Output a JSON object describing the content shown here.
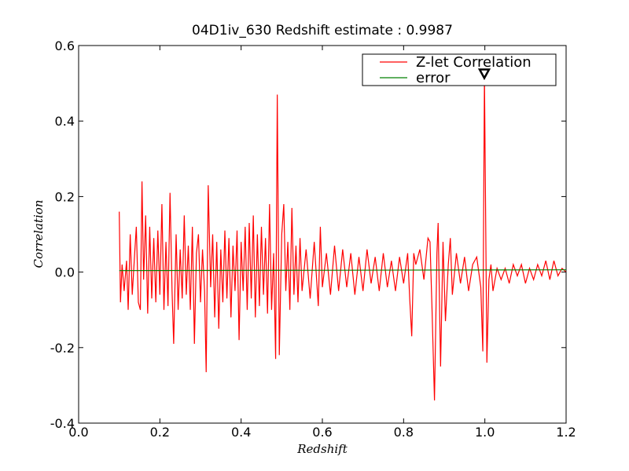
{
  "chart_data": {
    "type": "line",
    "title": "04D1iv_630 Redshift estimate : 0.9987",
    "xlabel": "Redshift",
    "ylabel": "Correlation",
    "xlim": [
      0,
      1.2
    ],
    "ylim": [
      -0.4,
      0.6
    ],
    "xticks": [
      {
        "value": 0,
        "label": "0.0"
      },
      0.2,
      0.4,
      0.6,
      0.8,
      {
        "value": 1,
        "label": "1.0"
      },
      1.2
    ],
    "yticks": [
      -0.4,
      -0.2,
      {
        "value": 0,
        "label": "0.0"
      },
      0.2,
      0.4,
      0.6
    ],
    "legend": "upper right",
    "peak": {
      "x": 0.9987,
      "y": 0.52
    },
    "series": [
      {
        "name": "Z-let Correlation",
        "color": "#ff0000",
        "x": [
          0.1,
          0.103,
          0.107,
          0.112,
          0.118,
          0.122,
          0.127,
          0.132,
          0.138,
          0.142,
          0.147,
          0.152,
          0.156,
          0.16,
          0.165,
          0.17,
          0.175,
          0.18,
          0.185,
          0.19,
          0.195,
          0.2,
          0.205,
          0.21,
          0.215,
          0.22,
          0.225,
          0.23,
          0.234,
          0.24,
          0.245,
          0.25,
          0.255,
          0.26,
          0.265,
          0.27,
          0.275,
          0.28,
          0.285,
          0.29,
          0.295,
          0.3,
          0.305,
          0.31,
          0.314,
          0.319,
          0.325,
          0.33,
          0.335,
          0.34,
          0.345,
          0.35,
          0.355,
          0.36,
          0.365,
          0.37,
          0.375,
          0.38,
          0.385,
          0.39,
          0.395,
          0.4,
          0.405,
          0.41,
          0.415,
          0.42,
          0.425,
          0.43,
          0.435,
          0.44,
          0.445,
          0.45,
          0.455,
          0.46,
          0.465,
          0.47,
          0.475,
          0.48,
          0.485,
          0.489,
          0.494,
          0.5,
          0.505,
          0.51,
          0.515,
          0.52,
          0.525,
          0.53,
          0.535,
          0.54,
          0.545,
          0.55,
          0.56,
          0.57,
          0.58,
          0.59,
          0.595,
          0.6,
          0.61,
          0.62,
          0.63,
          0.64,
          0.65,
          0.66,
          0.67,
          0.68,
          0.69,
          0.7,
          0.71,
          0.72,
          0.73,
          0.74,
          0.75,
          0.76,
          0.77,
          0.78,
          0.79,
          0.8,
          0.81,
          0.815,
          0.82,
          0.825,
          0.83,
          0.84,
          0.85,
          0.86,
          0.865,
          0.87,
          0.876,
          0.882,
          0.885,
          0.891,
          0.897,
          0.903,
          0.91,
          0.915,
          0.92,
          0.93,
          0.94,
          0.95,
          0.96,
          0.97,
          0.98,
          0.99,
          0.995,
          0.999,
          1.005,
          1.01,
          1.015,
          1.02,
          1.03,
          1.04,
          1.05,
          1.06,
          1.07,
          1.08,
          1.09,
          1.1,
          1.11,
          1.12,
          1.13,
          1.14,
          1.15,
          1.16,
          1.17,
          1.18,
          1.19,
          1.2
        ],
        "values": [
          0.16,
          -0.08,
          0.02,
          -0.05,
          0.03,
          -0.1,
          0.1,
          -0.06,
          0.05,
          0.12,
          -0.08,
          -0.1,
          0.24,
          -0.02,
          0.15,
          -0.11,
          0.12,
          -0.07,
          0.09,
          -0.08,
          0.11,
          -0.06,
          0.18,
          -0.1,
          0.08,
          -0.09,
          0.21,
          -0.05,
          -0.19,
          0.1,
          -0.1,
          0.06,
          -0.07,
          0.15,
          -0.06,
          0.07,
          -0.1,
          0.12,
          -0.19,
          0.05,
          0.1,
          -0.08,
          0.06,
          -0.05,
          -0.265,
          0.23,
          -0.04,
          0.1,
          -0.12,
          0.08,
          -0.15,
          0.06,
          -0.08,
          0.11,
          -0.07,
          0.09,
          -0.12,
          0.07,
          -0.05,
          0.11,
          -0.18,
          0.08,
          -0.05,
          0.12,
          -0.1,
          0.13,
          -0.07,
          0.15,
          -0.12,
          0.1,
          -0.09,
          0.12,
          -0.06,
          0.09,
          -0.11,
          0.18,
          -0.1,
          0.05,
          -0.23,
          0.47,
          -0.22,
          0.1,
          0.18,
          -0.05,
          0.08,
          -0.1,
          0.17,
          -0.06,
          0.07,
          -0.08,
          0.09,
          -0.05,
          0.06,
          -0.07,
          0.08,
          -0.09,
          0.12,
          -0.04,
          0.05,
          -0.06,
          0.07,
          -0.05,
          0.06,
          -0.04,
          0.05,
          -0.06,
          0.04,
          -0.05,
          0.06,
          -0.03,
          0.04,
          -0.05,
          0.05,
          -0.04,
          0.03,
          -0.05,
          0.04,
          -0.03,
          0.05,
          -0.07,
          -0.17,
          0.05,
          0.02,
          0.06,
          -0.02,
          0.09,
          0.08,
          -0.1,
          -0.34,
          0.05,
          0.13,
          -0.25,
          0.08,
          -0.13,
          0.02,
          0.09,
          -0.06,
          0.05,
          -0.03,
          0.04,
          -0.05,
          0.02,
          0.04,
          -0.04,
          -0.21,
          0.52,
          -0.24,
          -0.02,
          0.02,
          -0.05,
          0.01,
          -0.02,
          0.01,
          -0.03,
          0.02,
          -0.01,
          0.02,
          -0.03,
          0.01,
          -0.02,
          0.02,
          -0.01,
          0.03,
          -0.02,
          0.03,
          -0.01,
          0.01,
          0.0
        ]
      },
      {
        "name": "error",
        "color": "#008000",
        "x": [
          0.1,
          1.2
        ],
        "values": [
          0.004,
          0.006
        ]
      }
    ]
  }
}
